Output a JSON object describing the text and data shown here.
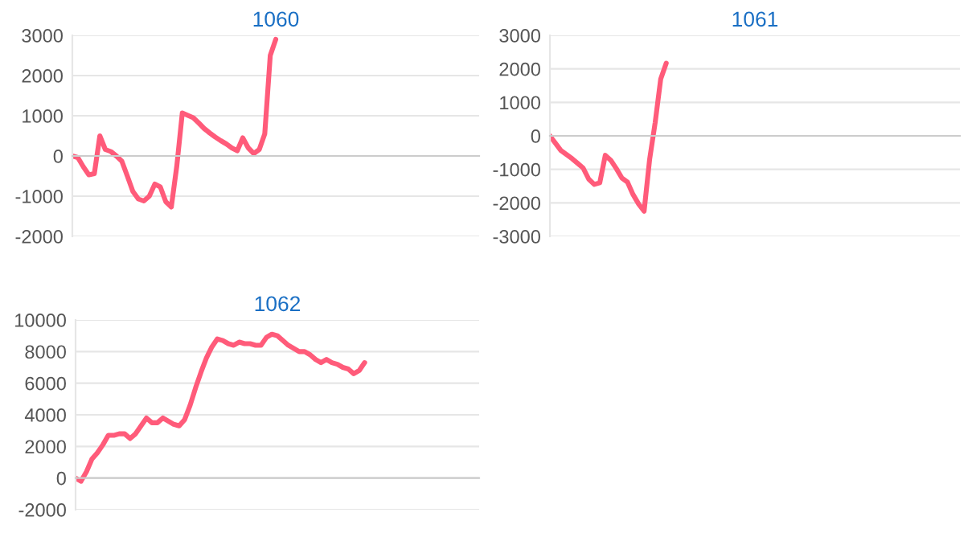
{
  "chart_data": [
    {
      "type": "line",
      "title": "1060",
      "categories": [
        null,
        null,
        null,
        null,
        null,
        null,
        null,
        null,
        null,
        null,
        null,
        null,
        null,
        null,
        null,
        null,
        null,
        null,
        null,
        null,
        null,
        null,
        null,
        null,
        null,
        null,
        null,
        null,
        null,
        null,
        null,
        null,
        null,
        null,
        null,
        null,
        null,
        null,
        null,
        null,
        null,
        null,
        null,
        null,
        null,
        null,
        null,
        null,
        null,
        null,
        null,
        null,
        null,
        null,
        null,
        null,
        null,
        null,
        null,
        null,
        null,
        null,
        null,
        null,
        null,
        null,
        null,
        null,
        null,
        null,
        null,
        null,
        null,
        null,
        null
      ],
      "series": [
        {
          "color": "#ff5b7a",
          "values": [
            0,
            -40,
            -270,
            -470,
            -440,
            500,
            160,
            110,
            0,
            -130,
            -500,
            -880,
            -1070,
            -1120,
            -1000,
            -700,
            -770,
            -1140,
            -1270,
            -250,
            1070,
            1010,
            950,
            820,
            680,
            570,
            470,
            380,
            300,
            200,
            130,
            450,
            200,
            60,
            160,
            550,
            2500,
            2900,
            null,
            null,
            null,
            null,
            null,
            null,
            null,
            null,
            null,
            null,
            null,
            null,
            null,
            null,
            null,
            null,
            null,
            null,
            null,
            null,
            null,
            null,
            null,
            null,
            null,
            null,
            null,
            null,
            null,
            null,
            null,
            null,
            null,
            null,
            null,
            null,
            null
          ]
        }
      ],
      "ylim": [
        -2000,
        3000
      ],
      "yticks": [
        -2000,
        -1000,
        0,
        1000,
        2000,
        3000
      ],
      "grid": "y",
      "tick_labels": "y",
      "marker": "none",
      "line_style": "solid"
    },
    {
      "type": "line",
      "title": "1061",
      "categories": [
        null,
        null,
        null,
        null,
        null,
        null,
        null,
        null,
        null,
        null,
        null,
        null,
        null,
        null,
        null,
        null,
        null,
        null,
        null,
        null,
        null,
        null,
        null,
        null,
        null,
        null,
        null,
        null,
        null,
        null,
        null,
        null,
        null,
        null,
        null,
        null,
        null,
        null,
        null,
        null,
        null,
        null,
        null,
        null,
        null,
        null,
        null,
        null,
        null,
        null,
        null,
        null,
        null,
        null,
        null,
        null,
        null,
        null,
        null,
        null,
        null,
        null,
        null,
        null,
        null,
        null,
        null,
        null,
        null,
        null,
        null,
        null,
        null,
        null,
        null
      ],
      "series": [
        {
          "color": "#ff5b7a",
          "values": [
            0,
            -220,
            -440,
            -560,
            -680,
            -820,
            -960,
            -1290,
            -1450,
            -1400,
            -580,
            -730,
            -980,
            -1260,
            -1380,
            -1750,
            -2030,
            -2250,
            -700,
            400,
            1700,
            2170,
            null,
            null,
            null,
            null,
            null,
            null,
            null,
            null,
            null,
            null,
            null,
            null,
            null,
            null,
            null,
            null,
            null,
            null,
            null,
            null,
            null,
            null,
            null,
            null,
            null,
            null,
            null,
            null,
            null,
            null,
            null,
            null,
            null,
            null,
            null,
            null,
            null,
            null,
            null,
            null,
            null,
            null,
            null,
            null,
            null,
            null,
            null,
            null,
            null,
            null,
            null,
            null,
            null
          ]
        }
      ],
      "ylim": [
        -3000,
        3000
      ],
      "yticks": [
        -3000,
        -2000,
        -1000,
        0,
        1000,
        2000,
        3000
      ],
      "grid": "y",
      "tick_labels": "y",
      "marker": "none",
      "line_style": "solid"
    },
    {
      "type": "line",
      "title": "1062",
      "categories": [
        null,
        null,
        null,
        null,
        null,
        null,
        null,
        null,
        null,
        null,
        null,
        null,
        null,
        null,
        null,
        null,
        null,
        null,
        null,
        null,
        null,
        null,
        null,
        null,
        null,
        null,
        null,
        null,
        null,
        null,
        null,
        null,
        null,
        null,
        null,
        null,
        null,
        null,
        null,
        null,
        null,
        null,
        null,
        null,
        null,
        null,
        null,
        null,
        null,
        null,
        null,
        null,
        null,
        null,
        null,
        null,
        null,
        null,
        null,
        null,
        null,
        null,
        null,
        null,
        null,
        null,
        null,
        null,
        null,
        null,
        null,
        null,
        null,
        null,
        null
      ],
      "series": [
        {
          "color": "#ff5b7a",
          "values": [
            0,
            -200,
            400,
            1200,
            1600,
            2100,
            2700,
            2700,
            2800,
            2800,
            2500,
            2800,
            3300,
            3800,
            3500,
            3500,
            3800,
            3600,
            3400,
            3300,
            3700,
            4600,
            5700,
            6700,
            7600,
            8300,
            8800,
            8700,
            8500,
            8400,
            8600,
            8500,
            8500,
            8400,
            8400,
            8900,
            9100,
            9000,
            8700,
            8400,
            8200,
            8000,
            8000,
            7800,
            7500,
            7300,
            7500,
            7300,
            7200,
            7000,
            6900,
            6600,
            6800,
            7300,
            null,
            null,
            null,
            null,
            null,
            null,
            null,
            null,
            null,
            null,
            null,
            null,
            null,
            null,
            null,
            null,
            null,
            null,
            null,
            null,
            null
          ]
        }
      ],
      "ylim": [
        -2000,
        10000
      ],
      "yticks": [
        -2000,
        0,
        2000,
        4000,
        6000,
        8000,
        10000
      ],
      "grid": "y",
      "tick_labels": "y",
      "marker": "none",
      "line_style": "solid"
    }
  ]
}
